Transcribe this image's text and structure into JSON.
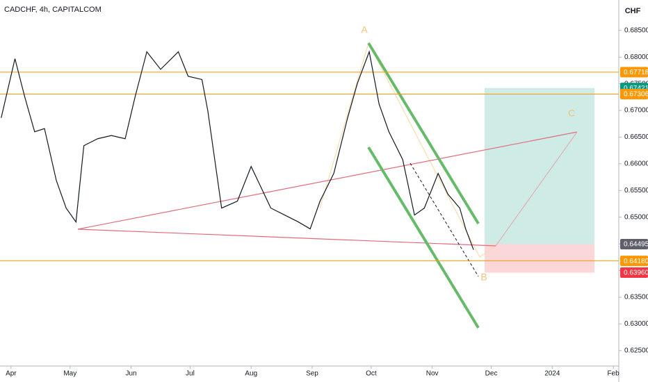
{
  "chart_data": {
    "type": "line",
    "title": "CADCHF, 4h, CAPITALCOM",
    "currency": "CHF",
    "color": "#131722",
    "grid": false,
    "x": [
      -5,
      2,
      7,
      12,
      17,
      23,
      28,
      33,
      37,
      44,
      51,
      58,
      63,
      69,
      76,
      85,
      90,
      97,
      100,
      104,
      107,
      115,
      122,
      127,
      132,
      139,
      146,
      152,
      157,
      164,
      171,
      176,
      182,
      187,
      192,
      199,
      205,
      210,
      217,
      222,
      228,
      231,
      235
    ],
    "values": [
      0.6686,
      0.6797,
      0.6725,
      0.666,
      0.6666,
      0.6569,
      0.6517,
      0.6491,
      0.6634,
      0.6647,
      0.6653,
      0.6647,
      0.6725,
      0.681,
      0.6777,
      0.681,
      0.6764,
      0.6758,
      0.6699,
      0.6595,
      0.6517,
      0.653,
      0.6595,
      0.6556,
      0.6517,
      0.6504,
      0.6491,
      0.6478,
      0.653,
      0.6582,
      0.6686,
      0.6751,
      0.681,
      0.6712,
      0.666,
      0.6608,
      0.6504,
      0.6517,
      0.6582,
      0.6543,
      0.6517,
      0.6478,
      0.6439
    ],
    "xlim": [
      -5.6,
      308.8
    ],
    "xticks": [
      {
        "value": 0,
        "label": "Apr"
      },
      {
        "value": 30,
        "label": "May"
      },
      {
        "value": 61,
        "label": "Jun"
      },
      {
        "value": 91,
        "label": "Jul"
      },
      {
        "value": 122,
        "label": "Aug"
      },
      {
        "value": 153,
        "label": "Sep"
      },
      {
        "value": 183,
        "label": "Oct"
      },
      {
        "value": 214,
        "label": "Nov"
      },
      {
        "value": 244,
        "label": "Dec"
      },
      {
        "value": 275,
        "label": "2024"
      },
      {
        "value": 306,
        "label": "Feb"
      }
    ],
    "ylim": [
      0.6221,
      0.6907
    ],
    "yticks": [
      {
        "value": 0.685,
        "label": "0.68500"
      },
      {
        "value": 0.68,
        "label": "0.68000"
      },
      {
        "value": 0.675,
        "label": "0.67500"
      },
      {
        "value": 0.67,
        "label": "0.67000"
      },
      {
        "value": 0.665,
        "label": "0.66500"
      },
      {
        "value": 0.66,
        "label": "0.66000"
      },
      {
        "value": 0.655,
        "label": "0.65500"
      },
      {
        "value": 0.65,
        "label": "0.65000"
      },
      {
        "value": 0.645,
        "label": "0.64500"
      },
      {
        "value": 0.64,
        "label": "0.64000"
      },
      {
        "value": 0.635,
        "label": "0.63500"
      },
      {
        "value": 0.63,
        "label": "0.63000"
      },
      {
        "value": 0.625,
        "label": "0.62500"
      }
    ],
    "price_labels": [
      {
        "value": 0.67718,
        "color": "#ff9800",
        "line": true
      },
      {
        "value": 0.67421,
        "color": "#089981",
        "line": false
      },
      {
        "value": 0.67306,
        "color": "#ff9800",
        "line": true
      },
      {
        "value": 0.64495,
        "color": "#5d606b",
        "line": false
      },
      {
        "value": 0.6418,
        "label": "0.64180",
        "color": "#ff9800",
        "line": true
      },
      {
        "value": 0.6396,
        "label": "0.63960",
        "color": "#f23645",
        "line": false
      }
    ],
    "annotations": [
      "A",
      "B",
      "C"
    ]
  }
}
